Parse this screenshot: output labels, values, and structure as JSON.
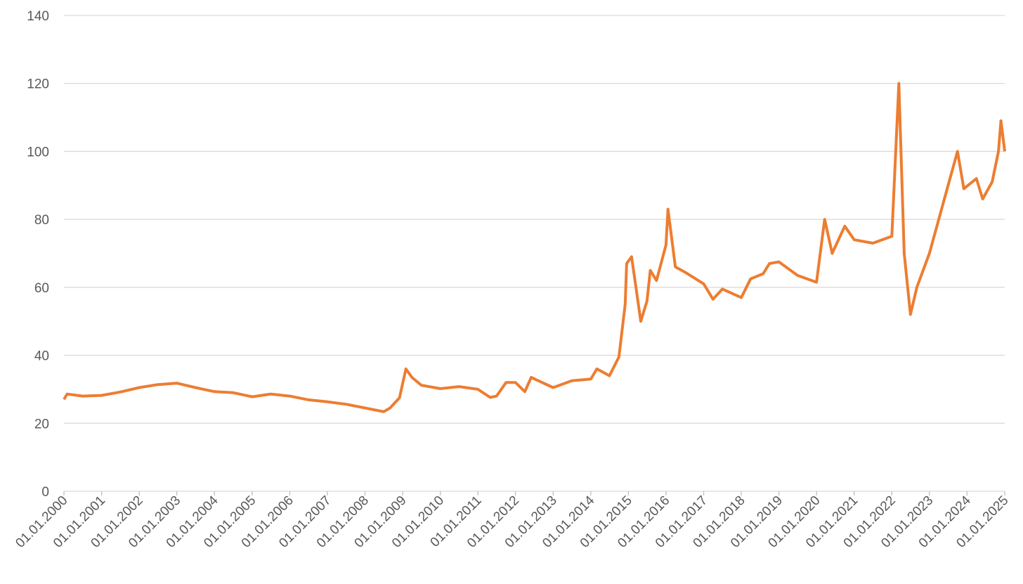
{
  "chart_data": {
    "type": "line",
    "color": "#ed7d31",
    "grid": true,
    "ylim": [
      0,
      140
    ],
    "yticks": [
      0,
      20,
      40,
      60,
      80,
      100,
      120,
      140
    ],
    "xlim": [
      "01.01.2000",
      "01.01.2025"
    ],
    "xticks": [
      "01.01.2000",
      "01.01.2001",
      "01.01.2002",
      "01.01.2003",
      "01.01.2004",
      "01.01.2005",
      "01.01.2006",
      "01.01.2007",
      "01.01.2008",
      "01.01.2009",
      "01.01.2010",
      "01.01.2011",
      "01.01.2012",
      "01.01.2013",
      "01.01.2014",
      "01.01.2015",
      "01.01.2016",
      "01.01.2017",
      "01.01.2018",
      "01.01.2019",
      "01.01.2020",
      "01.01.2021",
      "01.01.2022",
      "01.01.2023",
      "01.01.2024",
      "01.01.2025"
    ],
    "x": [
      "01.01.2000",
      "01.02.2000",
      "01.07.2000",
      "01.01.2001",
      "01.07.2001",
      "01.01.2002",
      "01.07.2002",
      "01.01.2003",
      "01.07.2003",
      "01.01.2004",
      "01.07.2004",
      "01.01.2005",
      "01.07.2005",
      "01.01.2006",
      "01.07.2006",
      "01.01.2007",
      "01.07.2007",
      "01.01.2008",
      "01.07.2008",
      "01.09.2008",
      "01.12.2008",
      "01.02.2009",
      "01.04.2009",
      "01.07.2009",
      "01.01.2010",
      "01.07.2010",
      "01.01.2011",
      "01.05.2011",
      "01.07.2011",
      "01.10.2011",
      "01.01.2012",
      "01.04.2012",
      "01.06.2012",
      "01.01.2013",
      "01.07.2013",
      "01.01.2014",
      "01.03.2014",
      "01.07.2014",
      "01.10.2014",
      "01.12.2014",
      "15.12.2014",
      "01.02.2015",
      "01.05.2015",
      "01.07.2015",
      "01.08.2015",
      "01.10.2015",
      "01.01.2016",
      "20.01.2016",
      "01.04.2016",
      "01.07.2016",
      "01.01.2017",
      "01.04.2017",
      "01.07.2017",
      "01.01.2018",
      "01.04.2018",
      "01.08.2018",
      "01.10.2018",
      "01.01.2019",
      "01.07.2019",
      "01.01.2020",
      "20.03.2020",
      "01.06.2020",
      "01.10.2020",
      "01.01.2021",
      "01.07.2021",
      "01.01.2022",
      "10.03.2022",
      "01.05.2022",
      "01.07.2022",
      "01.09.2022",
      "01.01.2023",
      "01.07.2023",
      "01.10.2023",
      "01.12.2023",
      "01.04.2024",
      "01.06.2024",
      "01.09.2024",
      "01.11.2024",
      "25.11.2024",
      "01.01.2025"
    ],
    "values": [
      27.0,
      28.6,
      28.0,
      28.2,
      29.2,
      30.5,
      31.4,
      31.8,
      30.5,
      29.3,
      29.0,
      27.8,
      28.6,
      28.0,
      26.9,
      26.3,
      25.6,
      24.5,
      23.4,
      24.5,
      27.5,
      36.0,
      33.5,
      31.2,
      30.2,
      30.8,
      30.0,
      27.6,
      28.0,
      32.0,
      32.0,
      29.3,
      33.5,
      30.5,
      32.5,
      33.0,
      36.0,
      34.0,
      39.5,
      55.0,
      67.0,
      69.0,
      50.0,
      56.0,
      65.0,
      62.0,
      72.5,
      83.0,
      66.0,
      64.5,
      61.0,
      56.5,
      59.5,
      57.0,
      62.5,
      64.0,
      67.0,
      67.5,
      63.5,
      61.5,
      80.0,
      70.0,
      78.0,
      74.0,
      73.0,
      75.0,
      120.0,
      70.0,
      52.0,
      60.0,
      70.0,
      90.0,
      100.0,
      89.0,
      92.0,
      86.0,
      91.0,
      100.0,
      109.0,
      100.0
    ]
  }
}
